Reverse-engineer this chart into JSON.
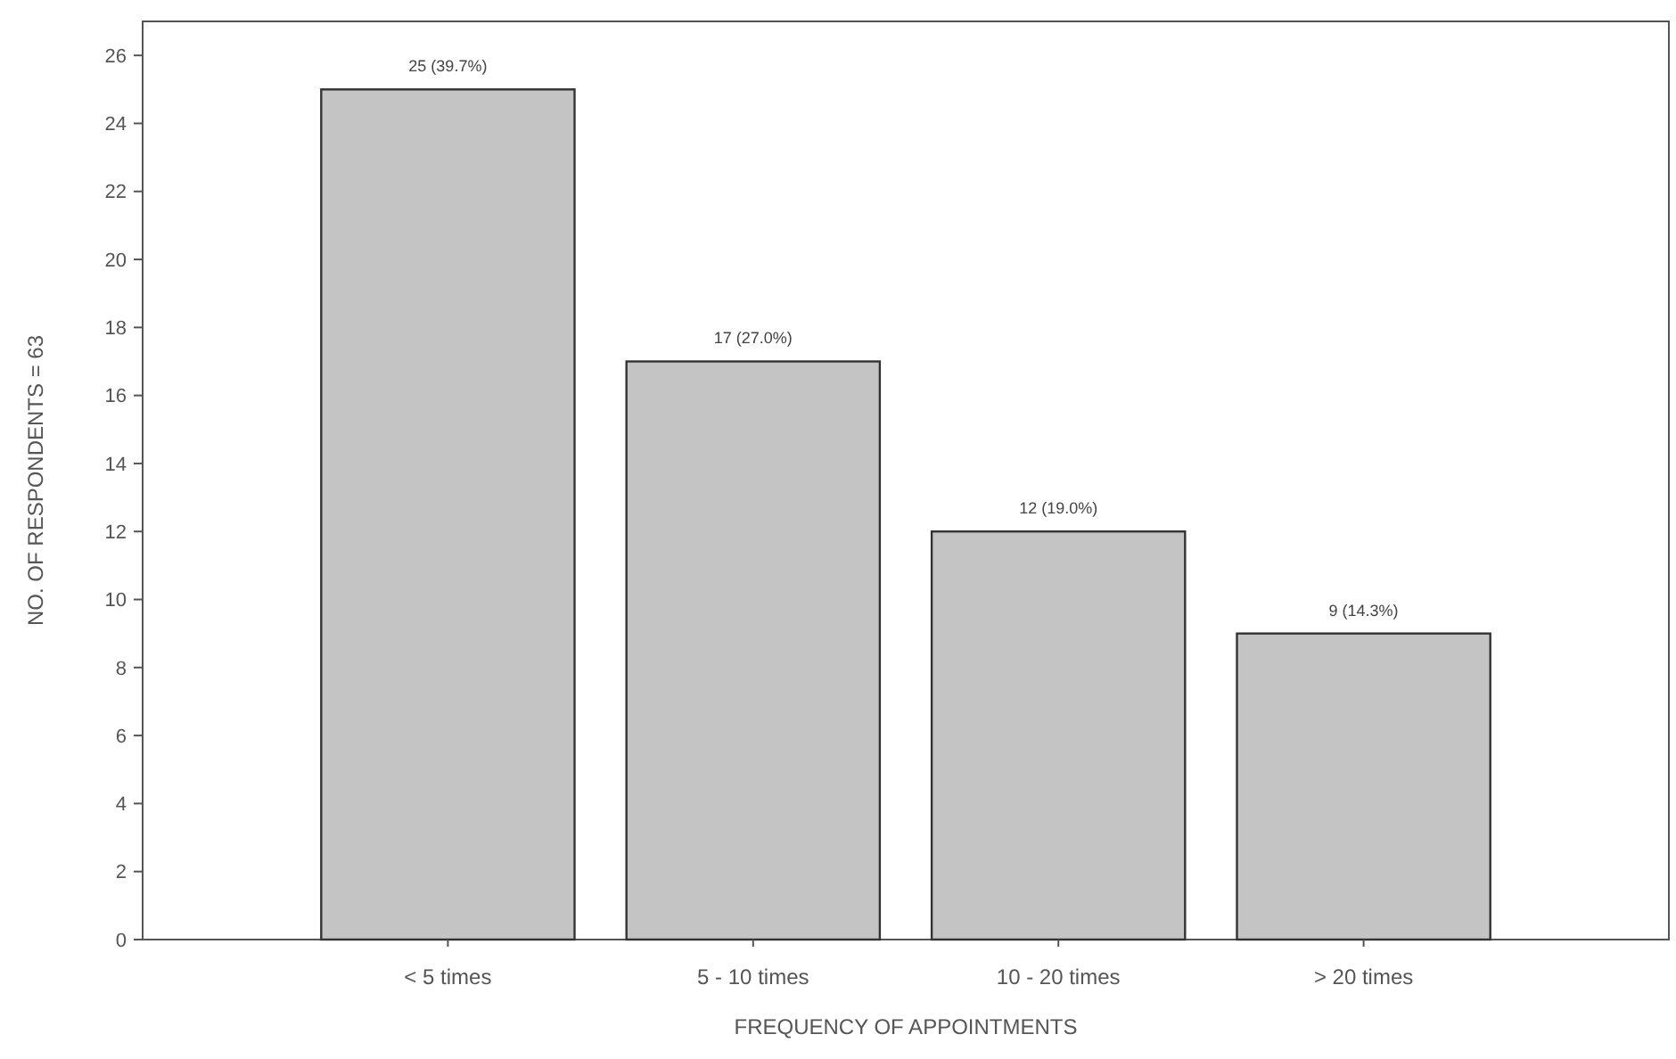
{
  "chart_data": {
    "type": "bar",
    "xlabel": "FREQUENCY OF APPOINTMENTS",
    "ylabel": "NO. OF RESPONDENTS = 63",
    "categories": [
      "< 5 times",
      "5 - 10 times",
      "10 - 20 times",
      "> 20 times"
    ],
    "values": [
      25,
      17,
      12,
      9
    ],
    "color": "#c4c4c4",
    "value_labels": [
      "25 (39.7%)",
      "17 (27.0%)",
      "12 (19.0%)",
      "9 (14.3%)"
    ],
    "ylim": [
      0,
      27
    ],
    "yticks": [
      0,
      2,
      4,
      6,
      8,
      10,
      12,
      14,
      16,
      18,
      20,
      22,
      24,
      26
    ],
    "grid": false
  }
}
